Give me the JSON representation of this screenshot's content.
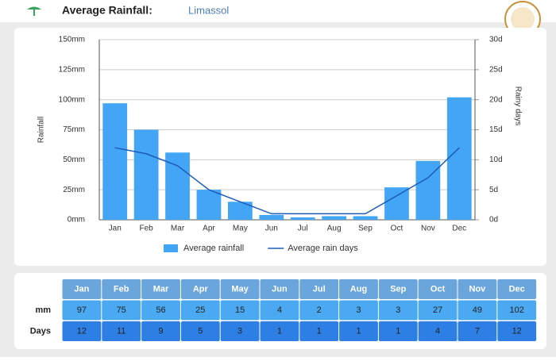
{
  "header": {
    "title": "Average Rainfall:",
    "location": "Limassol"
  },
  "chart_data": {
    "type": "bar",
    "categories": [
      "Jan",
      "Feb",
      "Mar",
      "Apr",
      "May",
      "Jun",
      "Jul",
      "Aug",
      "Sep",
      "Oct",
      "Nov",
      "Dec"
    ],
    "series": [
      {
        "name": "Average rainfall",
        "color": "#42a5f5",
        "values": [
          97,
          75,
          56,
          25,
          15,
          4,
          2,
          3,
          3,
          27,
          49,
          102
        ]
      },
      {
        "name": "Average rain days",
        "color": "#1e5bb8",
        "type": "line",
        "axis": "y2",
        "values": [
          12,
          11,
          9,
          5,
          3,
          1,
          1,
          1,
          1,
          4,
          7,
          12
        ]
      }
    ],
    "y_label": "Rainfall",
    "y2_label": "Rainy days",
    "ylim": [
      0,
      150
    ],
    "yticks": [
      {
        "value": 0,
        "label": "0mm"
      },
      {
        "value": 25,
        "label": "25mm"
      },
      {
        "value": 50,
        "label": "50mm"
      },
      {
        "value": 75,
        "label": "75mm"
      },
      {
        "value": 100,
        "label": "100mm"
      },
      {
        "value": 125,
        "label": "125mm"
      },
      {
        "value": 150,
        "label": "150mm"
      }
    ],
    "y2lim": [
      0,
      30
    ],
    "y2ticks": [
      {
        "value": 0,
        "label": "0d"
      },
      {
        "value": 5,
        "label": "5d"
      },
      {
        "value": 10,
        "label": "10d"
      },
      {
        "value": 15,
        "label": "15d"
      },
      {
        "value": 20,
        "label": "20d"
      },
      {
        "value": 25,
        "label": "25d"
      },
      {
        "value": 30,
        "label": "30d"
      }
    ],
    "grid": true,
    "legend": "bottom"
  },
  "table": {
    "header": [
      "Jan",
      "Feb",
      "Mar",
      "Apr",
      "May",
      "Jun",
      "Jul",
      "Aug",
      "Sep",
      "Oct",
      "Nov",
      "Dec"
    ],
    "rows": [
      {
        "label": "mm",
        "cells": [
          97,
          75,
          56,
          25,
          15,
          4,
          2,
          3,
          3,
          27,
          49,
          102
        ]
      },
      {
        "label": "Days",
        "cells": [
          12,
          11,
          9,
          5,
          3,
          1,
          1,
          1,
          1,
          4,
          7,
          12
        ]
      }
    ]
  }
}
